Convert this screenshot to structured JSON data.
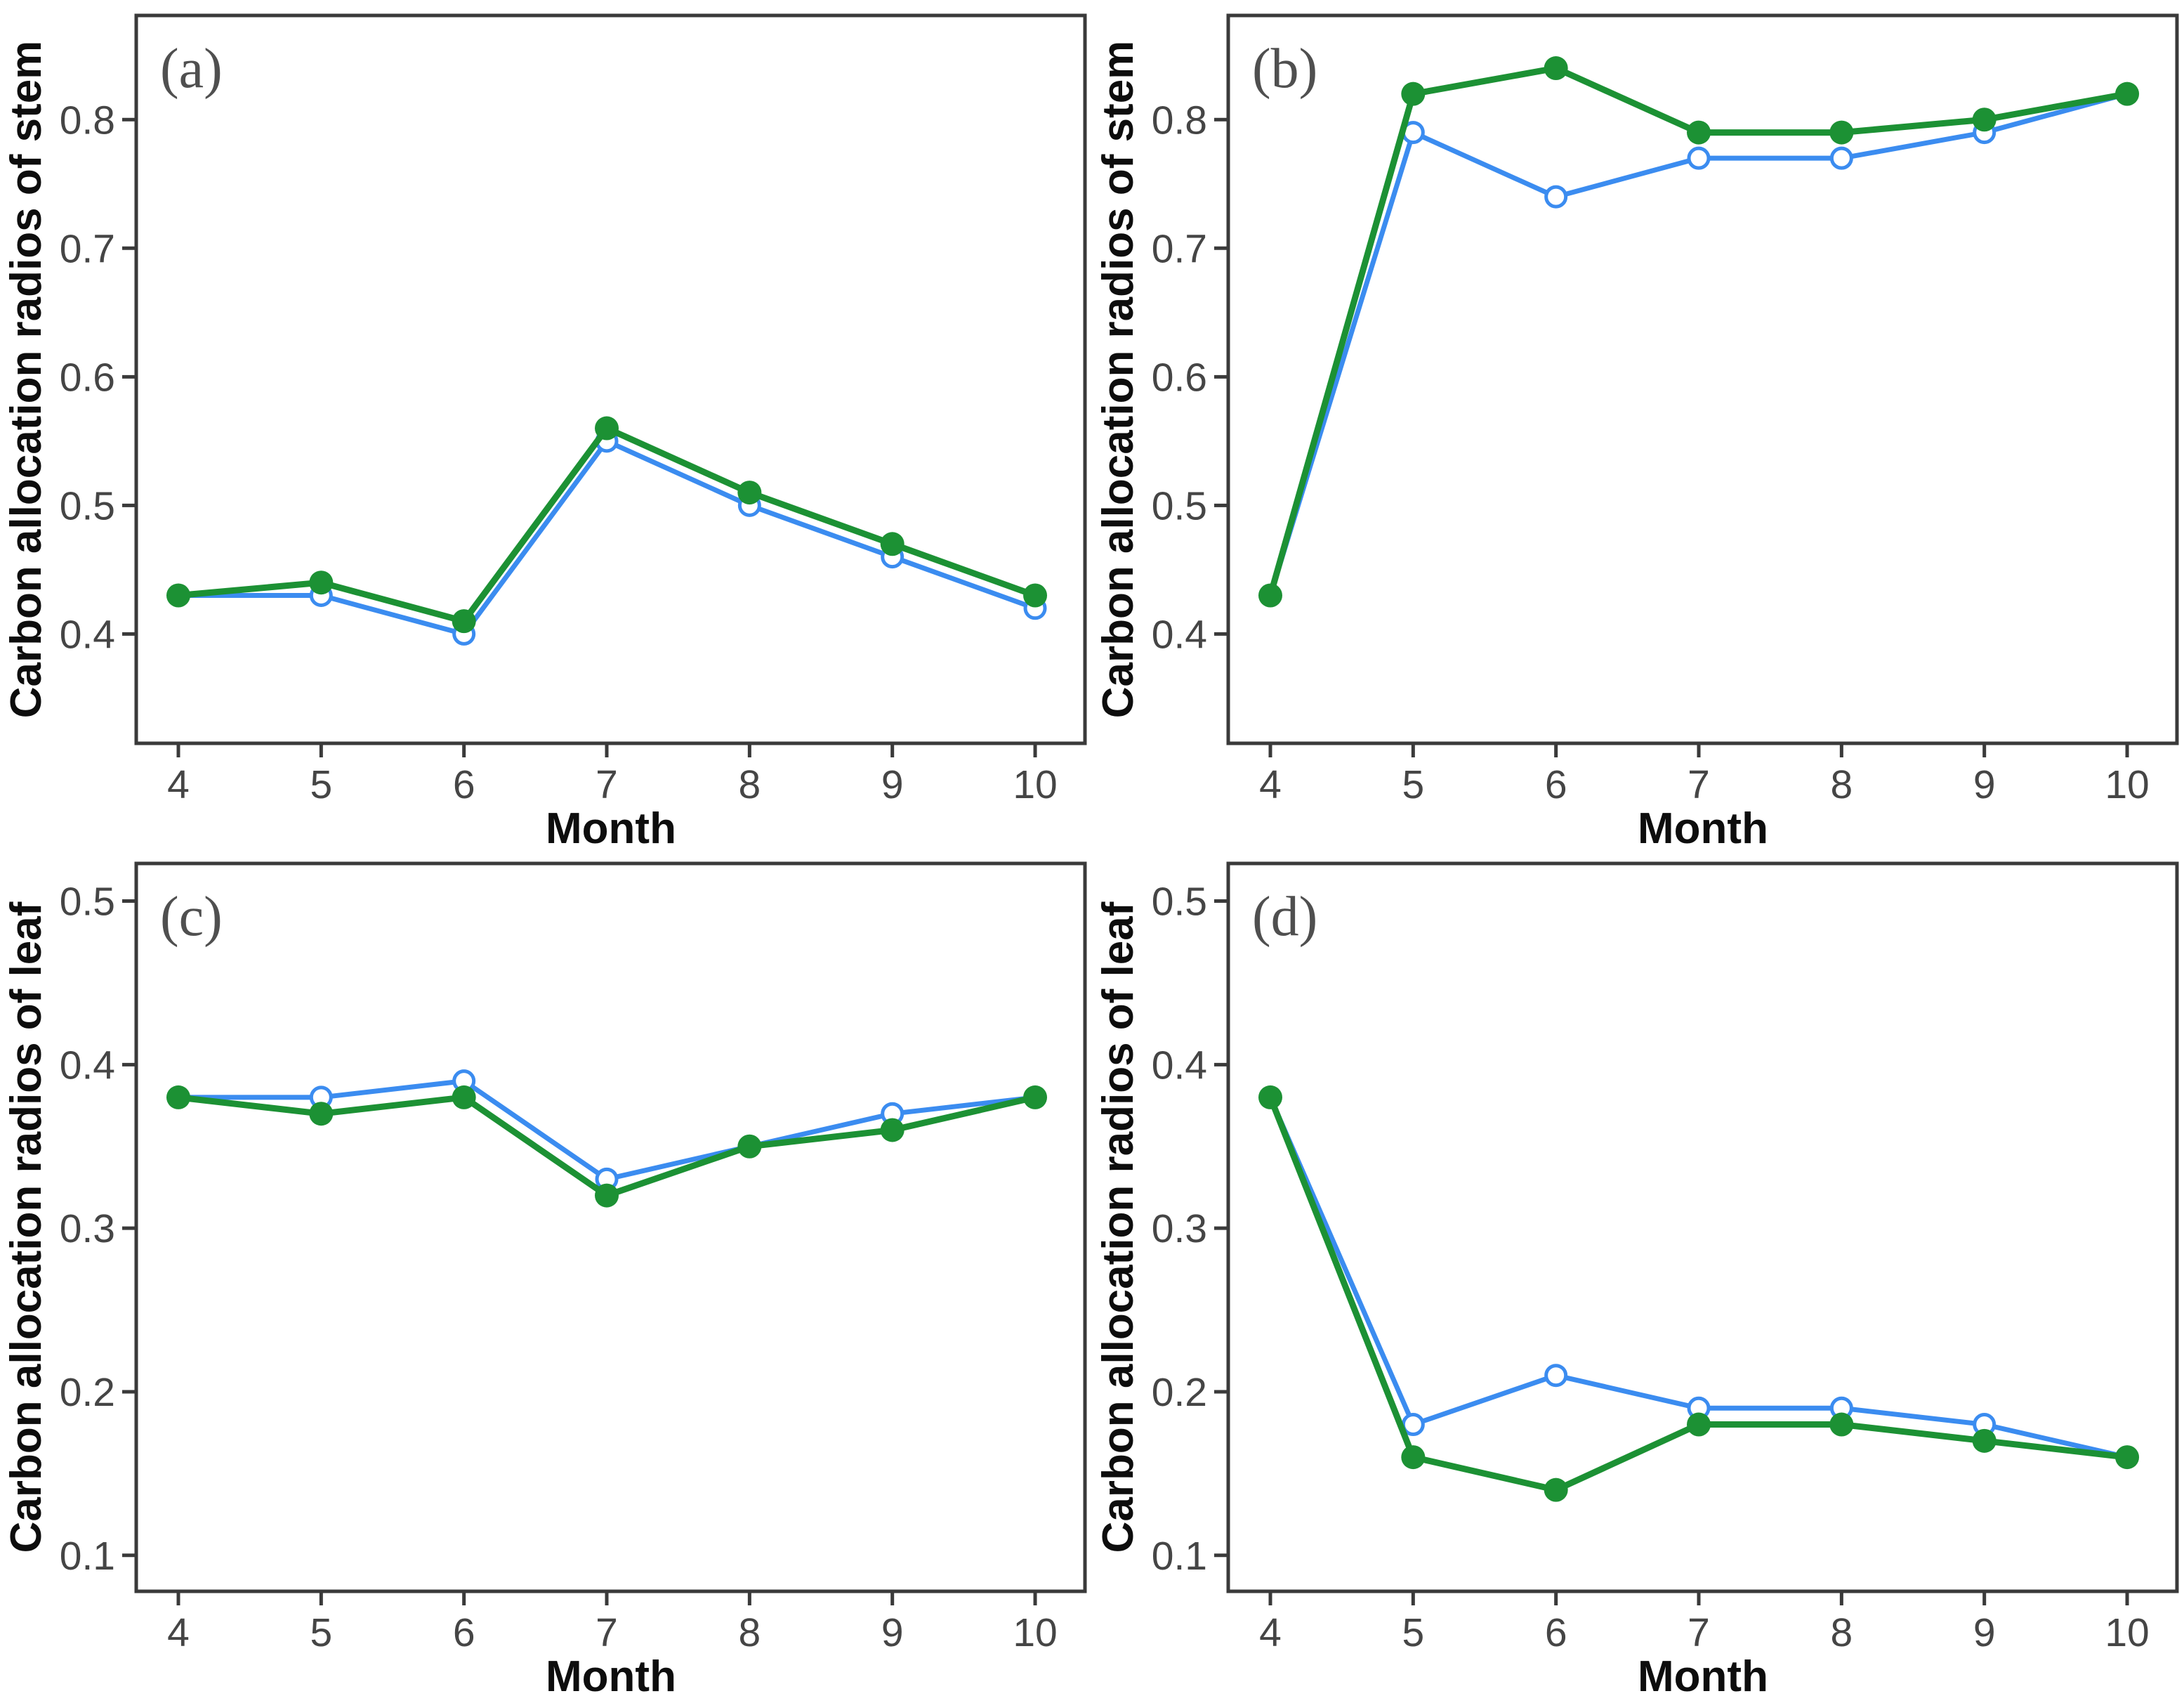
{
  "figure": {
    "background": "#ffffff",
    "xlabel": "Month",
    "colors": {
      "green_series": "#1c9134",
      "blue_series": "#3b8cf0",
      "axis": "#3a3a3a",
      "tick_label": "#454545",
      "panel_tag": "#4f4f4f"
    }
  },
  "chart_data": [
    {
      "id": "a",
      "tag": "(a)",
      "type": "line",
      "title": "",
      "xlabel": "Month",
      "ylabel": "Carbon allocation radios of stem",
      "x": [
        4,
        5,
        6,
        7,
        8,
        9,
        10
      ],
      "xticks": [
        4,
        5,
        6,
        7,
        8,
        9,
        10
      ],
      "yticks": [
        0.4,
        0.5,
        0.6,
        0.7,
        0.8
      ],
      "xlim": [
        3.705,
        10.349
      ],
      "ylim": [
        0.315,
        0.881
      ],
      "grid": false,
      "legend": "none",
      "series": [
        {
          "name": "blue-open-circle",
          "marker": "open",
          "color": "#3b8cf0",
          "values": [
            0.43,
            0.43,
            0.4,
            0.55,
            0.5,
            0.46,
            0.42
          ]
        },
        {
          "name": "green-filled-circle",
          "marker": "filled",
          "color": "#1c9134",
          "values": [
            0.43,
            0.44,
            0.41,
            0.56,
            0.51,
            0.47,
            0.43
          ]
        }
      ]
    },
    {
      "id": "b",
      "tag": "(b)",
      "type": "line",
      "title": "",
      "xlabel": "Month",
      "ylabel": "Carbon allocation radios of stem",
      "x": [
        4,
        5,
        6,
        7,
        8,
        9,
        10
      ],
      "xticks": [
        4,
        5,
        6,
        7,
        8,
        9,
        10
      ],
      "yticks": [
        0.4,
        0.5,
        0.6,
        0.7,
        0.8
      ],
      "xlim": [
        3.705,
        10.349
      ],
      "ylim": [
        0.315,
        0.881
      ],
      "grid": false,
      "legend": "none",
      "series": [
        {
          "name": "blue-open-circle",
          "marker": "open",
          "color": "#3b8cf0",
          "values": [
            0.43,
            0.79,
            0.74,
            0.77,
            0.77,
            0.79,
            0.82
          ]
        },
        {
          "name": "green-filled-circle",
          "marker": "filled",
          "color": "#1c9134",
          "values": [
            0.43,
            0.82,
            0.84,
            0.79,
            0.79,
            0.8,
            0.82
          ]
        }
      ]
    },
    {
      "id": "c",
      "tag": "(c)",
      "type": "line",
      "title": "",
      "xlabel": "Month",
      "ylabel": "Carbon allocation radios of leaf",
      "x": [
        4,
        5,
        6,
        7,
        8,
        9,
        10
      ],
      "xticks": [
        4,
        5,
        6,
        7,
        8,
        9,
        10
      ],
      "yticks": [
        0.1,
        0.2,
        0.3,
        0.4,
        0.5
      ],
      "xlim": [
        3.705,
        10.349
      ],
      "ylim": [
        0.078,
        0.523
      ],
      "grid": false,
      "legend": "none",
      "series": [
        {
          "name": "blue-open-circle",
          "marker": "open",
          "color": "#3b8cf0",
          "values": [
            0.38,
            0.38,
            0.39,
            0.33,
            0.35,
            0.37,
            0.38
          ]
        },
        {
          "name": "green-filled-circle",
          "marker": "filled",
          "color": "#1c9134",
          "values": [
            0.38,
            0.37,
            0.38,
            0.32,
            0.35,
            0.36,
            0.38
          ]
        }
      ]
    },
    {
      "id": "d",
      "tag": "(d)",
      "type": "line",
      "title": "",
      "xlabel": "Month",
      "ylabel": "Carbon allocation radios of leaf",
      "x": [
        4,
        5,
        6,
        7,
        8,
        9,
        10
      ],
      "xticks": [
        4,
        5,
        6,
        7,
        8,
        9,
        10
      ],
      "yticks": [
        0.1,
        0.2,
        0.3,
        0.4,
        0.5
      ],
      "xlim": [
        3.705,
        10.349
      ],
      "ylim": [
        0.078,
        0.523
      ],
      "grid": false,
      "legend": "none",
      "series": [
        {
          "name": "blue-open-circle",
          "marker": "open",
          "color": "#3b8cf0",
          "values": [
            0.38,
            0.18,
            0.21,
            0.19,
            0.19,
            0.18,
            0.16
          ]
        },
        {
          "name": "green-filled-circle",
          "marker": "filled",
          "color": "#1c9134",
          "values": [
            0.38,
            0.16,
            0.14,
            0.18,
            0.18,
            0.17,
            0.16
          ]
        }
      ]
    }
  ]
}
